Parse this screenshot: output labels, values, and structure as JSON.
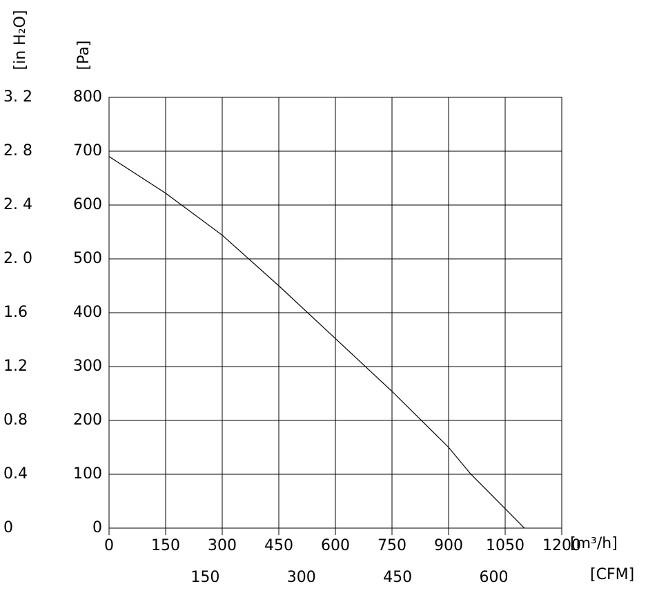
{
  "chart_data": {
    "type": "line",
    "x_label": "[m³/h]",
    "x2_label": "[CFM]",
    "y_label": "[Pa]",
    "y2_label": "[in H₂O]",
    "xlim": [
      0,
      1200
    ],
    "xticks": [
      0,
      150,
      300,
      450,
      600,
      750,
      900,
      1050,
      1200
    ],
    "x2lim": [
      0,
      706
    ],
    "x2ticks": [
      150,
      300,
      450,
      600
    ],
    "ylim": [
      0,
      800
    ],
    "yticks": [
      0,
      100,
      200,
      300,
      400,
      500,
      600,
      700,
      800
    ],
    "y2lim": [
      0,
      3.2
    ],
    "y2ticks": [
      0,
      0.4,
      0.8,
      1.2,
      1.6,
      {
        "value": 2.0,
        "label": "2. 0"
      },
      {
        "value": 2.4,
        "label": "2. 4"
      },
      {
        "value": 2.8,
        "label": "2. 8"
      },
      {
        "value": 3.2,
        "label": "3. 2"
      }
    ],
    "grid": true,
    "series": [
      {
        "color": "#000000",
        "x": [
          0,
          150,
          300,
          450,
          600,
          750,
          900,
          958,
          1101
        ],
        "values": [
          690,
          622,
          544,
          450,
          352,
          254,
          150,
          101,
          0
        ]
      }
    ]
  }
}
